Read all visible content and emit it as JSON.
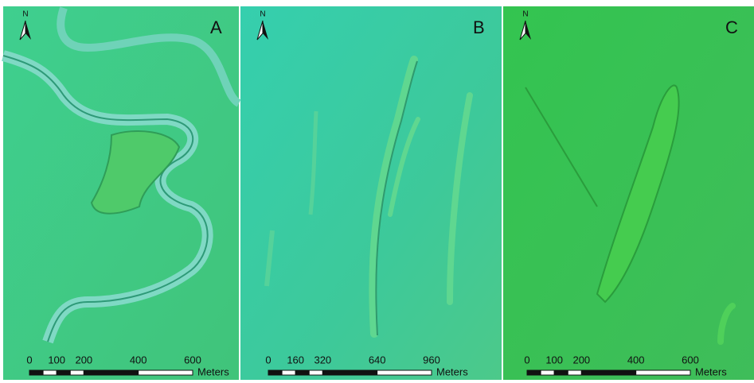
{
  "panels": [
    {
      "label": "A",
      "north": "N",
      "scale": {
        "ticks": [
          0,
          100,
          200,
          400,
          600
        ],
        "unit": "Meters"
      }
    },
    {
      "label": "B",
      "north": "N",
      "scale": {
        "ticks": [
          0,
          160,
          320,
          640,
          960
        ],
        "unit": "Meters"
      }
    },
    {
      "label": "C",
      "north": "N",
      "scale": {
        "ticks": [
          0,
          100,
          200,
          400,
          600
        ],
        "unit": "Meters"
      }
    }
  ]
}
